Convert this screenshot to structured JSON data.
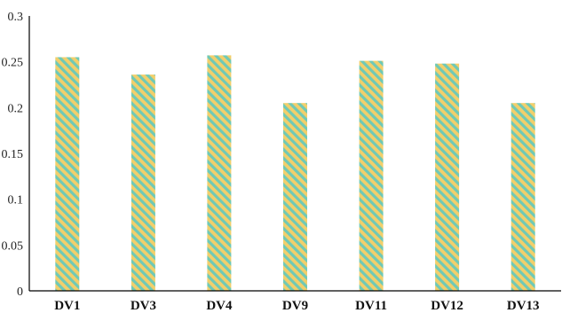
{
  "chart_data": {
    "type": "bar",
    "categories": [
      "DV1",
      "DV3",
      "DV4",
      "DV9",
      "DV11",
      "DV12",
      "DV13"
    ],
    "values": [
      0.255,
      0.236,
      0.257,
      0.205,
      0.251,
      0.248,
      0.205
    ],
    "yticks": [
      "0",
      "0.05",
      "0.1",
      "0.15",
      "0.2",
      "0.25",
      "0.3"
    ],
    "ylim": [
      0,
      0.3
    ],
    "title": "",
    "xlabel": "",
    "ylabel": "",
    "grid": false,
    "colors": {
      "bar_base": "#f2cf6b",
      "bar_stripe": "#6fc9b6",
      "axis": "#000000"
    }
  }
}
